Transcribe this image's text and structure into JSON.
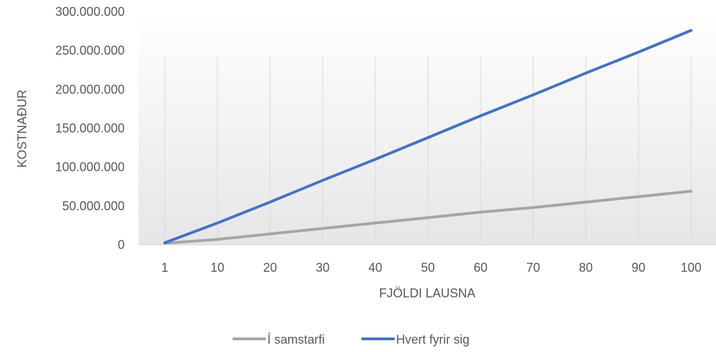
{
  "chart_data": {
    "type": "line",
    "title": "",
    "xlabel": "FJÖLDI LAUSNA",
    "ylabel": "KOSTNAÐUR",
    "categories": [
      "1",
      "10",
      "20",
      "30",
      "40",
      "50",
      "60",
      "70",
      "80",
      "90",
      "100"
    ],
    "y_ticks": [
      "0",
      "50.000.000",
      "100.000.000",
      "150.000.000",
      "200.000.000",
      "250.000.000",
      "300.000.000"
    ],
    "ylim": [
      0,
      300000000
    ],
    "grid": "vertical",
    "legend_position": "bottom",
    "series": [
      {
        "name": "Í samstarfi",
        "color": "#A5A5A5",
        "values": [
          2000000,
          7000000,
          14000000,
          21000000,
          28000000,
          35000000,
          42000000,
          48000000,
          55000000,
          62000000,
          69000000
        ]
      },
      {
        "name": "Hvert fyrir sig",
        "color": "#4472C4",
        "values": [
          2700000,
          28000000,
          55000000,
          83000000,
          110000000,
          138000000,
          166000000,
          193000000,
          221000000,
          248000000,
          276000000
        ]
      }
    ]
  }
}
